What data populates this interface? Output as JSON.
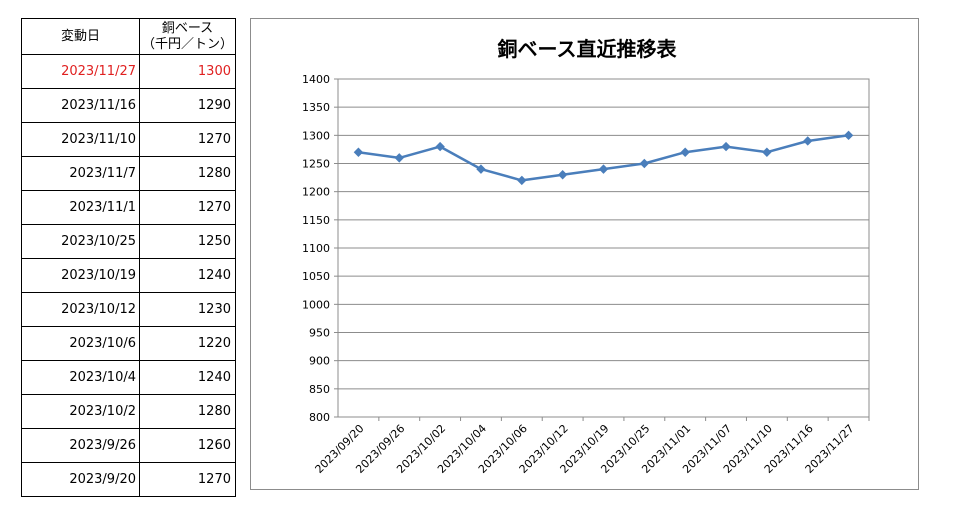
{
  "table": {
    "header": {
      "date": "変動日",
      "price_line1": "銅ベース",
      "price_line2": "（千円／トン）"
    },
    "highlight_color": "#e02020",
    "rows": [
      {
        "date": "2023/11/27",
        "price": "1300",
        "highlight": true
      },
      {
        "date": "2023/11/16",
        "price": "1290"
      },
      {
        "date": "2023/11/10",
        "price": "1270"
      },
      {
        "date": "2023/11/7",
        "price": "1280"
      },
      {
        "date": "2023/11/1",
        "price": "1270"
      },
      {
        "date": "2023/10/25",
        "price": "1250"
      },
      {
        "date": "2023/10/19",
        "price": "1240"
      },
      {
        "date": "2023/10/12",
        "price": "1230"
      },
      {
        "date": "2023/10/6",
        "price": "1220"
      },
      {
        "date": "2023/10/4",
        "price": "1240"
      },
      {
        "date": "2023/10/2",
        "price": "1280"
      },
      {
        "date": "2023/9/26",
        "price": "1260"
      },
      {
        "date": "2023/9/20",
        "price": "1270"
      }
    ]
  },
  "chart_data": {
    "type": "line",
    "title": "銅ベース直近推移表",
    "categories": [
      "2023/09/20",
      "2023/09/26",
      "2023/10/02",
      "2023/10/04",
      "2023/10/06",
      "2023/10/12",
      "2023/10/19",
      "2023/10/25",
      "2023/11/01",
      "2023/11/07",
      "2023/11/10",
      "2023/11/16",
      "2023/11/27"
    ],
    "series": [
      {
        "values": [
          1270,
          1260,
          1280,
          1240,
          1220,
          1230,
          1240,
          1250,
          1270,
          1280,
          1270,
          1290,
          1300
        ],
        "color": "#4a7ebb",
        "marker": "diamond"
      }
    ],
    "ylim": [
      800,
      1400
    ],
    "ytick_step": 50,
    "grid": true,
    "legend": "none"
  }
}
